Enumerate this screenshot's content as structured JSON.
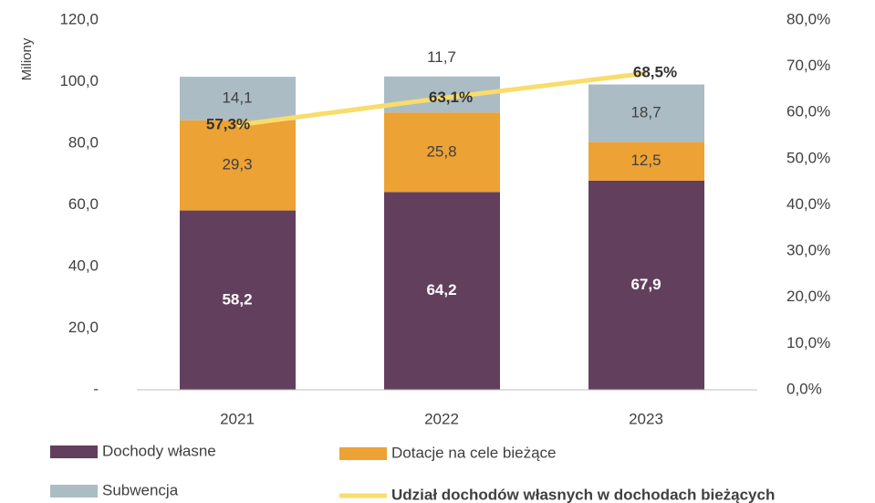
{
  "chart_data": {
    "type": "bar",
    "stacked": true,
    "ylabel": "Miliony",
    "categories": [
      "2021",
      "2022",
      "2023"
    ],
    "series": [
      {
        "name": "Dochody własne",
        "color": "#633f5e",
        "values": [
          58.2,
          64.2,
          67.9
        ],
        "value_labels": [
          "58,2",
          "64,2",
          "67,9"
        ]
      },
      {
        "name": "Dotacje na cele bieżące",
        "color": "#eca235",
        "values": [
          29.3,
          25.8,
          12.5
        ],
        "value_labels": [
          "29,3",
          "25,8",
          "12,5"
        ]
      },
      {
        "name": "Subwencja",
        "color": "#abbcc4",
        "values": [
          14.1,
          11.7,
          18.7
        ],
        "value_labels": [
          "14,1",
          "11,7",
          "18,7"
        ]
      },
      {
        "name": "Udział dochodów własnych w dochodach bieżących",
        "type": "line",
        "axis": "y2",
        "color": "#f9dc6b",
        "values": [
          57.3,
          63.1,
          68.5
        ],
        "value_labels": [
          "57,3%",
          "63,1%",
          "68,5%"
        ]
      }
    ],
    "ylim": [
      0,
      120
    ],
    "yticks": [
      {
        "value": 0,
        "label": "-"
      },
      {
        "value": 20,
        "label": "20,0"
      },
      {
        "value": 40,
        "label": "40,0"
      },
      {
        "value": 60,
        "label": "60,0"
      },
      {
        "value": 80,
        "label": "80,0"
      },
      {
        "value": 100,
        "label": "100,0"
      },
      {
        "value": 120,
        "label": "120,0"
      }
    ],
    "y2lim": [
      0,
      80
    ],
    "y2ticks": [
      {
        "value": 0,
        "label": "0,0%"
      },
      {
        "value": 10,
        "label": "10,0%"
      },
      {
        "value": 20,
        "label": "20,0%"
      },
      {
        "value": 30,
        "label": "30,0%"
      },
      {
        "value": 40,
        "label": "40,0%"
      },
      {
        "value": 50,
        "label": "50,0%"
      },
      {
        "value": 60,
        "label": "60,0%"
      },
      {
        "value": 70,
        "label": "70,0%"
      },
      {
        "value": 80,
        "label": "80,0%"
      }
    ],
    "grid": false,
    "legend": "bottom"
  }
}
